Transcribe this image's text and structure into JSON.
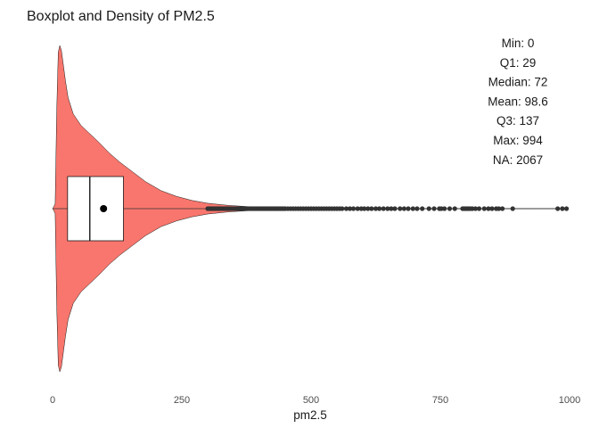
{
  "chart_data": {
    "type": "boxplot-violin",
    "title": "Boxplot and Density of PM2.5",
    "xlabel": "pm2.5",
    "ylabel": "",
    "xlim": [
      0,
      1000
    ],
    "x_ticks": [
      0,
      250,
      500,
      750,
      1000
    ],
    "grid": false,
    "violin_fill": "#F8766D",
    "box": {
      "min": 0,
      "q1": 29,
      "median": 72,
      "mean": 98.6,
      "q3": 137,
      "whisker_high": 299
    },
    "density": [
      {
        "x": 0,
        "h": 0.0
      },
      {
        "x": 2,
        "h": 0.01
      },
      {
        "x": 5,
        "h": 0.03
      },
      {
        "x": 8,
        "h": 0.6
      },
      {
        "x": 11,
        "h": 0.96
      },
      {
        "x": 14,
        "h": 1.0
      },
      {
        "x": 17,
        "h": 0.97
      },
      {
        "x": 20,
        "h": 0.9
      },
      {
        "x": 25,
        "h": 0.78
      },
      {
        "x": 30,
        "h": 0.68
      },
      {
        "x": 40,
        "h": 0.58
      },
      {
        "x": 55,
        "h": 0.51
      },
      {
        "x": 70,
        "h": 0.465
      },
      {
        "x": 90,
        "h": 0.405
      },
      {
        "x": 110,
        "h": 0.34
      },
      {
        "x": 130,
        "h": 0.285
      },
      {
        "x": 155,
        "h": 0.225
      },
      {
        "x": 180,
        "h": 0.165
      },
      {
        "x": 210,
        "h": 0.11
      },
      {
        "x": 240,
        "h": 0.075
      },
      {
        "x": 270,
        "h": 0.05
      },
      {
        "x": 300,
        "h": 0.033
      },
      {
        "x": 340,
        "h": 0.02
      },
      {
        "x": 380,
        "h": 0.012
      },
      {
        "x": 420,
        "h": 0.007
      },
      {
        "x": 470,
        "h": 0.004
      },
      {
        "x": 540,
        "h": 0.0025
      },
      {
        "x": 620,
        "h": 0.0015
      },
      {
        "x": 750,
        "h": 0.001
      },
      {
        "x": 900,
        "h": 0.0006
      },
      {
        "x": 994,
        "h": 0.0
      }
    ],
    "outliers": [
      300,
      303,
      306,
      309,
      312,
      315,
      318,
      321,
      324,
      327,
      330,
      333,
      336,
      339,
      342,
      345,
      348,
      351,
      354,
      357,
      360,
      363,
      366,
      369,
      372,
      375,
      378,
      381,
      384,
      387,
      390,
      393,
      396,
      399,
      402,
      405,
      408,
      411,
      414,
      417,
      420,
      423,
      426,
      429,
      432,
      435,
      438,
      441,
      444,
      447,
      450,
      455,
      460,
      465,
      470,
      475,
      480,
      485,
      490,
      495,
      500,
      505,
      510,
      515,
      520,
      525,
      530,
      535,
      540,
      545,
      550,
      555,
      560,
      568,
      575,
      582,
      590,
      597,
      603,
      610,
      617,
      625,
      632,
      640,
      648,
      655,
      662,
      672,
      680,
      688,
      697,
      705,
      715,
      728,
      738,
      748,
      752,
      758,
      768,
      778,
      793,
      796,
      799,
      802,
      805,
      808,
      812,
      818,
      825,
      835,
      843,
      850,
      858,
      863,
      870,
      890,
      977,
      986,
      994
    ],
    "summary": [
      {
        "label": "Min:",
        "value": " 0"
      },
      {
        "label": "Q1:",
        "value": "29"
      },
      {
        "label": "Median:",
        "value": " 72"
      },
      {
        "label": "Mean:",
        "value": "98.6"
      },
      {
        "label": "Q3:",
        "value": "137"
      },
      {
        "label": "Max:",
        "value": " 994"
      },
      {
        "label": "NA:",
        "value": "2067"
      }
    ]
  }
}
